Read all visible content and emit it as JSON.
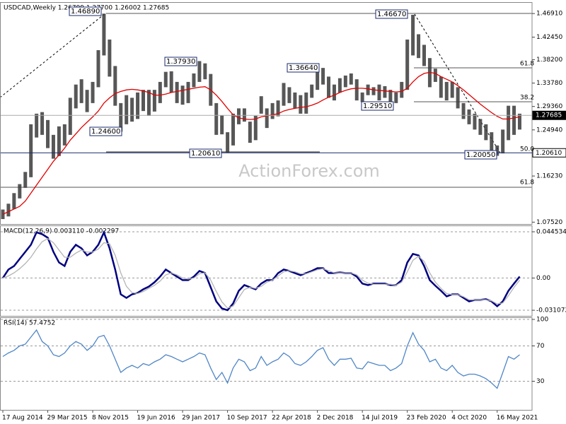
{
  "chart_data": [
    {
      "type": "ohlc",
      "title": "USDCAD,Weekly  1.26799 1.27700 1.26002 1.27685",
      "watermark": "ActionForex.com",
      "categories": [
        "17 Aug 2014",
        null,
        null,
        null,
        null,
        null,
        null,
        null,
        "29 Mar 2015",
        null,
        null,
        null,
        null,
        null,
        null,
        null,
        "8 Nov 2015",
        null,
        null,
        null,
        null,
        null,
        null,
        null,
        "19 Jun 2016",
        null,
        null,
        null,
        null,
        null,
        null,
        null,
        "29 Jan 2017",
        null,
        null,
        null,
        null,
        null,
        null,
        null,
        "10 Sep 2017",
        null,
        null,
        null,
        null,
        null,
        null,
        null,
        "22 Apr 2018",
        null,
        null,
        null,
        null,
        null,
        null,
        null,
        "2 Dec 2018",
        null,
        null,
        null,
        null,
        null,
        null,
        null,
        "14 Jul 2019",
        null,
        null,
        null,
        null,
        null,
        null,
        null,
        "23 Feb 2020",
        null,
        null,
        null,
        null,
        null,
        null,
        null,
        "4 Oct 2020",
        null,
        null,
        null,
        null,
        null,
        null,
        null,
        "16 May 2021",
        null,
        null,
        null,
        null
      ],
      "high": [
        1.099,
        1.11,
        1.13,
        1.147,
        1.17,
        1.26,
        1.28,
        1.283,
        1.268,
        1.24,
        1.256,
        1.26,
        1.31,
        1.335,
        1.345,
        1.325,
        1.34,
        1.4,
        1.4689,
        1.42,
        1.37,
        1.3,
        1.315,
        1.31,
        1.32,
        1.325,
        1.325,
        1.325,
        1.34,
        1.359,
        1.36,
        1.34,
        1.333,
        1.34,
        1.356,
        1.3793,
        1.375,
        1.355,
        1.3,
        1.277,
        1.245,
        1.28,
        1.29,
        1.29,
        1.265,
        1.276,
        1.313,
        1.29,
        1.3,
        1.305,
        1.338,
        1.33,
        1.32,
        1.315,
        1.32,
        1.335,
        1.36,
        1.3664,
        1.35,
        1.335,
        1.347,
        1.352,
        1.356,
        1.345,
        1.32,
        1.335,
        1.33,
        1.335,
        1.332,
        1.325,
        1.32,
        1.34,
        1.42,
        1.4667,
        1.43,
        1.41,
        1.385,
        1.365,
        1.35,
        1.34,
        1.34,
        1.33,
        1.3,
        1.288,
        1.28,
        1.27,
        1.26,
        1.245,
        1.22,
        1.25,
        1.295,
        1.295,
        1.28
      ],
      "low": [
        1.081,
        1.086,
        1.1,
        1.12,
        1.14,
        1.16,
        1.235,
        1.24,
        1.215,
        1.195,
        1.2,
        1.22,
        1.24,
        1.29,
        1.3,
        1.283,
        1.3,
        1.33,
        1.39,
        1.35,
        1.295,
        1.246,
        1.26,
        1.265,
        1.27,
        1.285,
        1.276,
        1.284,
        1.3,
        1.33,
        1.32,
        1.3,
        1.297,
        1.3,
        1.33,
        1.34,
        1.345,
        1.295,
        1.24,
        1.241,
        1.2061,
        1.22,
        1.26,
        1.265,
        1.225,
        1.23,
        1.28,
        1.253,
        1.27,
        1.275,
        1.295,
        1.3,
        1.29,
        1.28,
        1.28,
        1.31,
        1.325,
        1.335,
        1.31,
        1.305,
        1.32,
        1.33,
        1.335,
        1.305,
        1.302,
        1.315,
        1.315,
        1.305,
        1.31,
        1.2951,
        1.3,
        1.31,
        1.325,
        1.39,
        1.385,
        1.37,
        1.33,
        1.34,
        1.31,
        1.305,
        1.31,
        1.29,
        1.27,
        1.26,
        1.25,
        1.24,
        1.23,
        1.205,
        1.2005,
        1.205,
        1.23,
        1.24,
        1.25
      ],
      "bar_color": "#3a3a3a",
      "series": [
        {
          "color": "#e00000",
          "values": [
            1.09,
            1.095,
            1.1,
            1.105,
            1.115,
            1.13,
            1.145,
            1.16,
            1.175,
            1.19,
            1.202,
            1.215,
            1.23,
            1.242,
            1.254,
            1.264,
            1.274,
            1.285,
            1.3,
            1.31,
            1.318,
            1.322,
            1.325,
            1.326,
            1.325,
            1.323,
            1.32,
            1.315,
            1.315,
            1.317,
            1.32,
            1.322,
            1.324,
            1.326,
            1.328,
            1.33,
            1.331,
            1.325,
            1.315,
            1.303,
            1.29,
            1.278,
            1.272,
            1.27,
            1.269,
            1.27,
            1.274,
            1.276,
            1.278,
            1.28,
            1.285,
            1.288,
            1.29,
            1.292,
            1.293,
            1.296,
            1.3,
            1.306,
            1.311,
            1.315,
            1.32,
            1.324,
            1.327,
            1.328,
            1.328,
            1.327,
            1.325,
            1.324,
            1.323,
            1.322,
            1.321,
            1.322,
            1.328,
            1.34,
            1.35,
            1.356,
            1.358,
            1.356,
            1.35,
            1.345,
            1.34,
            1.333,
            1.325,
            1.316,
            1.307,
            1.298,
            1.29,
            1.282,
            1.275,
            1.27,
            1.27,
            1.272,
            1.274
          ]
        }
      ],
      "annotations": [
        "1.46890",
        "1.37930",
        "1.24600",
        "1.20610",
        "1.36640",
        "1.29510",
        "1.46670",
        "1.20050"
      ],
      "fib_labels": [
        "61.8",
        "38.2",
        "50.0",
        "61.8"
      ],
      "ylim": [
        1.073,
        1.488
      ],
      "yticks": [
        {
          "value": 1.4691,
          "label": "1.46910"
        },
        {
          "value": 1.4245,
          "label": "1.42450"
        },
        {
          "value": 1.382,
          "label": "1.38200"
        },
        {
          "value": 1.3378,
          "label": "1.33780"
        },
        {
          "value": 1.2936,
          "label": "1.29360"
        },
        {
          "value": 1.2494,
          "label": "1.24940"
        },
        {
          "value": 1.1623,
          "label": "1.16230"
        },
        {
          "value": 1.0752,
          "label": "1.07520"
        }
      ],
      "marked_levels": [
        {
          "value": 1.27685,
          "label": "1.27685"
        },
        {
          "value": 1.2061,
          "label": "1.20610"
        }
      ]
    },
    {
      "type": "line",
      "title": "MACD(12,26,9) 0.003110 -0.002297",
      "series": [
        {
          "color": "#000080",
          "values": [
            0.0,
            0.0082,
            0.0116,
            0.0184,
            0.0252,
            0.032,
            0.044,
            0.0422,
            0.0388,
            0.0252,
            0.015,
            0.0116,
            0.0252,
            0.032,
            0.0286,
            0.0218,
            0.0252,
            0.032,
            0.044,
            0.0286,
            0.0082,
            -0.0157,
            -0.0191,
            -0.0157,
            -0.0143,
            -0.0109,
            -0.0082,
            -0.0041,
            0.0014,
            0.0082,
            0.0048,
            0.0014,
            -0.002,
            -0.002,
            0.0014,
            0.0068,
            0.0048,
            -0.0089,
            -0.0225,
            -0.0293,
            -0.031,
            -0.0245,
            -0.0123,
            -0.0068,
            -0.0089,
            -0.0109,
            -0.0054,
            -0.002,
            -0.002,
            0.0048,
            0.0082,
            0.0068,
            0.0048,
            0.0027,
            0.0048,
            0.0068,
            0.0095,
            0.0095,
            0.0048,
            0.0048,
            0.0054,
            0.0048,
            0.0048,
            0.0014,
            -0.0054,
            -0.0068,
            -0.0054,
            -0.0054,
            -0.0054,
            -0.0068,
            -0.0068,
            -0.002,
            0.015,
            0.0232,
            0.0218,
            0.0116,
            -0.002,
            -0.0075,
            -0.0123,
            -0.0177,
            -0.0157,
            -0.0157,
            -0.0191,
            -0.0225,
            -0.0211,
            -0.0211,
            -0.0204,
            -0.0225,
            -0.0272,
            -0.0225,
            -0.0123,
            -0.0054,
            0.0014
          ]
        },
        {
          "color": "#b4b4b4",
          "values": [
            0.0,
            0.002,
            0.005,
            0.009,
            0.014,
            0.02,
            0.028,
            0.035,
            0.038,
            0.034,
            0.027,
            0.02,
            0.02,
            0.024,
            0.027,
            0.025,
            0.025,
            0.028,
            0.034,
            0.033,
            0.022,
            0.005,
            -0.008,
            -0.014,
            -0.015,
            -0.013,
            -0.01,
            -0.007,
            -0.003,
            0.003,
            0.005,
            0.003,
            0.0,
            -0.001,
            0.0,
            0.004,
            0.005,
            -0.002,
            -0.013,
            -0.023,
            -0.029,
            -0.027,
            -0.019,
            -0.011,
            -0.009,
            -0.01,
            -0.008,
            -0.004,
            -0.002,
            0.002,
            0.006,
            0.007,
            0.006,
            0.004,
            0.004,
            0.006,
            0.008,
            0.009,
            0.007,
            0.005,
            0.005,
            0.005,
            0.005,
            0.003,
            -0.002,
            -0.005,
            -0.006,
            -0.006,
            -0.006,
            -0.006,
            -0.007,
            -0.004,
            0.006,
            0.017,
            0.021,
            0.016,
            0.005,
            -0.004,
            -0.01,
            -0.015,
            -0.016,
            -0.016,
            -0.018,
            -0.021,
            -0.021,
            -0.021,
            -0.021,
            -0.022,
            -0.025,
            -0.024,
            -0.017,
            -0.009,
            -0.002
          ]
        }
      ],
      "ylim": [
        -0.0358,
        0.0493
      ],
      "yticks": [
        0.044534,
        {
          "value": 0,
          "label": "0.00"
        },
        -0.031072
      ]
    },
    {
      "type": "line",
      "title": "RSI(14) 57.4752",
      "series": [
        {
          "color": "#4f86c6",
          "values": [
            58,
            62,
            65,
            70,
            72,
            80,
            88,
            75,
            70,
            60,
            58,
            62,
            70,
            75,
            72,
            65,
            70,
            80,
            82,
            70,
            55,
            40,
            45,
            48,
            45,
            50,
            48,
            52,
            55,
            60,
            58,
            55,
            52,
            55,
            58,
            62,
            60,
            45,
            32,
            40,
            28,
            45,
            55,
            52,
            42,
            45,
            58,
            48,
            52,
            55,
            62,
            58,
            50,
            48,
            52,
            58,
            65,
            68,
            55,
            48,
            55,
            55,
            56,
            45,
            44,
            52,
            50,
            48,
            48,
            42,
            45,
            50,
            70,
            85,
            72,
            65,
            52,
            55,
            45,
            42,
            48,
            40,
            36,
            38,
            38,
            36,
            33,
            28,
            22,
            40,
            58,
            55,
            60
          ]
        }
      ],
      "ylim": [
        0,
        100
      ],
      "yticks": [
        100,
        70,
        30
      ]
    }
  ]
}
